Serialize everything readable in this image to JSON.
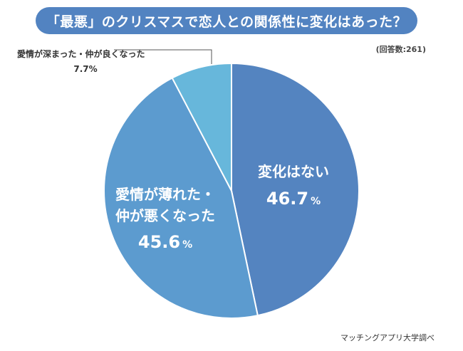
{
  "header": {
    "title": "「最悪」のクリスマスで恋人との関係性に変化はあった？"
  },
  "respondents": "(回答数:261)",
  "source": "マッチングアプリ大学調べ",
  "chart_data": {
    "type": "pie",
    "title": "「最悪」のクリスマスで恋人との関係性に変化はあった？",
    "start": "top",
    "direction": "clockwise",
    "slices": [
      {
        "label": "変化はない",
        "label_lines": [
          "変化はない"
        ],
        "value": 46.7,
        "display": "46.7",
        "color": "#5484c0"
      },
      {
        "label": "愛情が薄れた・仲が悪くなった",
        "label_lines": [
          "愛情が薄れた・",
          "仲が悪くなった"
        ],
        "value": 45.6,
        "display": "45.6",
        "color": "#5c9bcf"
      },
      {
        "label": "愛情が深まった・仲が良くなった",
        "label_lines": [
          "愛情が深まった・仲が良くなった"
        ],
        "value": 7.7,
        "display": "7.7%",
        "color": "#67b7db"
      }
    ],
    "percent_sign": "%"
  }
}
